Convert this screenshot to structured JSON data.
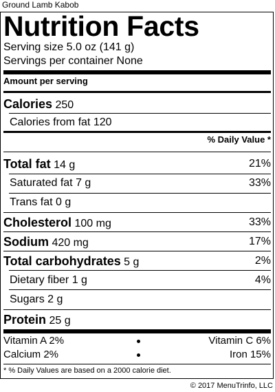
{
  "item_name": "Ground Lamb Kabob",
  "title": "Nutrition Facts",
  "serving_size": "Serving size 5.0 oz (141 g)",
  "servings_per_container": "Servings per container None",
  "amount_per_serving": "Amount per serving",
  "calories": {
    "label": "Calories",
    "value": "250"
  },
  "calories_from_fat": "Calories from fat 120",
  "daily_value_header": "% Daily Value *",
  "nutrients": [
    {
      "label": "Total fat",
      "value": "14 g",
      "pct": "21%"
    },
    {
      "label": "Saturated fat 7 g",
      "pct": "33%"
    },
    {
      "label": "Trans fat 0 g",
      "pct": ""
    },
    {
      "label": "Cholesterol",
      "value": "100 mg",
      "pct": "33%"
    },
    {
      "label": "Sodium",
      "value": "420 mg",
      "pct": "17%"
    },
    {
      "label": "Total carbohydrates",
      "value": "5 g",
      "pct": "2%"
    },
    {
      "label": "Dietary fiber 1 g",
      "pct": "4%"
    },
    {
      "label": "Sugars 2 g",
      "pct": ""
    },
    {
      "label": "Protein",
      "value": "25 g",
      "pct": ""
    }
  ],
  "vitamins": [
    {
      "left": "Vitamin A 2%",
      "right": "Vitamin C 6%"
    },
    {
      "left": "Calcium 2%",
      "right": "Iron 15%"
    }
  ],
  "footnote": "* % Daily Values are based on a 2000 calorie diet.",
  "copyright": "© 2017 MenuTrinfo, LLC"
}
